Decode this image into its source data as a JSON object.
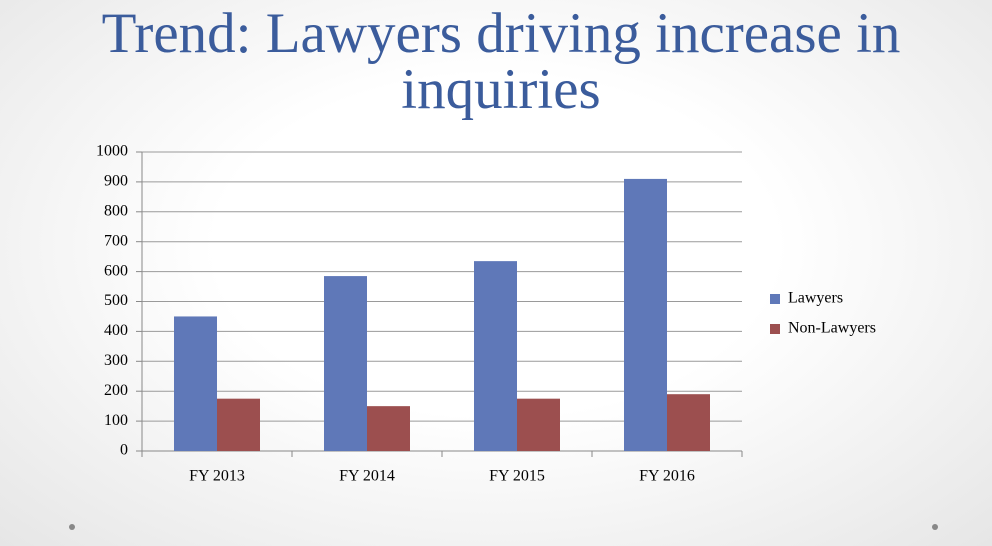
{
  "chart_data": {
    "type": "bar",
    "title": "Trend: Lawyers driving increase in inquiries",
    "categories": [
      "FY 2013",
      "FY 2014",
      "FY 2015",
      "FY 2016"
    ],
    "series": [
      {
        "name": "Lawyers",
        "color": "#5f78b8",
        "values": [
          450,
          585,
          635,
          910
        ]
      },
      {
        "name": "Non-Lawyers",
        "color": "#9c4f4f",
        "values": [
          175,
          150,
          175,
          190
        ]
      }
    ],
    "ylim": [
      0,
      1000
    ],
    "yticks": [
      0,
      100,
      200,
      300,
      400,
      500,
      600,
      700,
      800,
      900,
      1000
    ],
    "grid": true,
    "legend": "right"
  }
}
